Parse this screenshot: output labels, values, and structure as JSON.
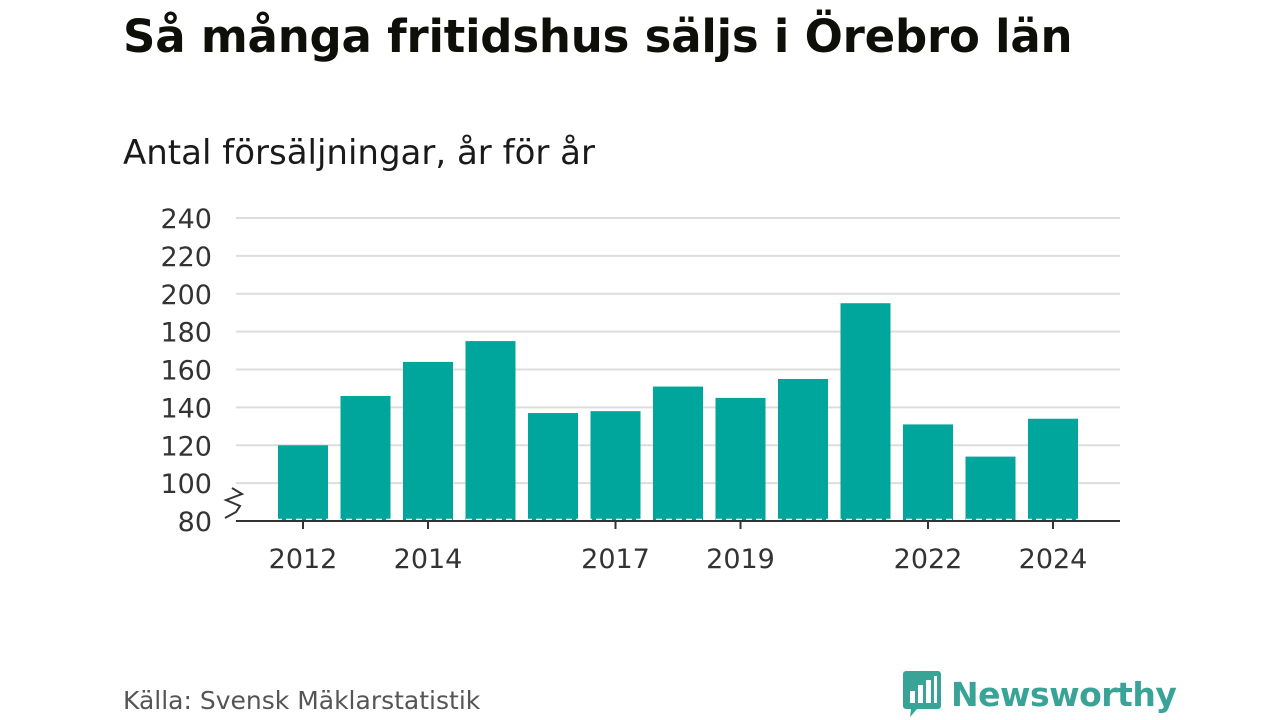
{
  "header": {
    "title": "Så många fritidshus säljs i Örebro län",
    "subtitle": "Antal försäljningar, år för år"
  },
  "footer": {
    "source": "Källa: Svensk Mäklarstatistik",
    "brand": "Newsworthy",
    "brand_icon": "bar-chart-speech-bubble-icon"
  },
  "colors": {
    "bar": "#00a59b",
    "grid": "#dddddd",
    "axis": "#333333",
    "brand": "#3aa397"
  },
  "chart_data": {
    "type": "bar",
    "title": "Så många fritidshus säljs i Örebro län",
    "subtitle": "Antal försäljningar, år för år",
    "xlabel": "",
    "ylabel": "",
    "x": [
      2012,
      2013,
      2014,
      2015,
      2016,
      2017,
      2018,
      2019,
      2020,
      2021,
      2022,
      2023,
      2024
    ],
    "values": [
      120,
      146,
      164,
      175,
      137,
      138,
      151,
      145,
      155,
      195,
      131,
      114,
      134
    ],
    "x_tick_labels": [
      "2012",
      "2014",
      "2017",
      "2019",
      "2022",
      "2024"
    ],
    "y_ticks": [
      80,
      100,
      120,
      140,
      160,
      180,
      200,
      220,
      240
    ],
    "ylim": [
      80,
      240
    ],
    "y_axis_break": true,
    "grid": true,
    "legend": "none"
  }
}
